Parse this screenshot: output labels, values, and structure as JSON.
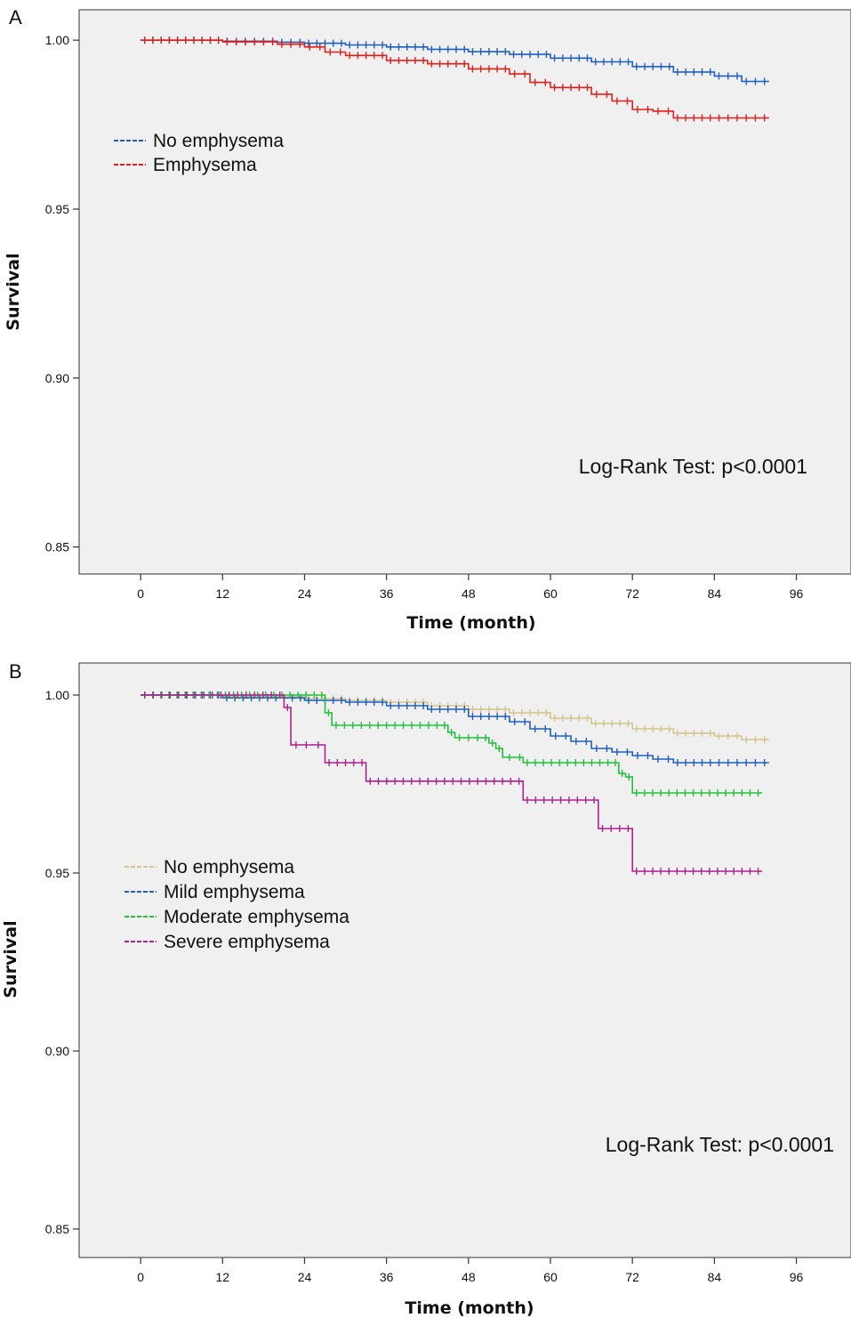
{
  "chart_data": [
    {
      "panel_label": "A",
      "type": "line",
      "step": true,
      "xlabel": "Time (month)",
      "ylabel": "Survival",
      "xlim": [
        -9,
        104
      ],
      "ylim": [
        0.842,
        1.009
      ],
      "xticks": [
        0,
        12,
        24,
        36,
        48,
        60,
        72,
        84,
        96
      ],
      "yticks": [
        0.85,
        0.9,
        0.95,
        1.0
      ],
      "ytick_labels": [
        "0.85",
        "0.90",
        "0.95",
        "1.00"
      ],
      "grid": false,
      "legend_position": "top-left",
      "annotation": "Log-Rank Test: p<0.0001",
      "series": [
        {
          "name": "No emphysema",
          "color": "#1f5fbf",
          "x": [
            0,
            12,
            20,
            24,
            30,
            36,
            42,
            48,
            54,
            60,
            66,
            72,
            78,
            84,
            88,
            92
          ],
          "y": [
            1.0,
            0.9997,
            0.9994,
            0.9991,
            0.9986,
            0.998,
            0.9973,
            0.9966,
            0.9958,
            0.9947,
            0.9936,
            0.9922,
            0.9906,
            0.9894,
            0.9878,
            0.9878
          ]
        },
        {
          "name": "Emphysema",
          "color": "#e0201c",
          "x": [
            0,
            12,
            20,
            24,
            27,
            30,
            36,
            42,
            48,
            54,
            57,
            60,
            66,
            69,
            72,
            75,
            78,
            84,
            92
          ],
          "y": [
            1.0,
            0.9995,
            0.9988,
            0.998,
            0.9965,
            0.9955,
            0.994,
            0.993,
            0.9915,
            0.99,
            0.9875,
            0.986,
            0.984,
            0.982,
            0.9795,
            0.979,
            0.977,
            0.977,
            0.977
          ]
        }
      ]
    },
    {
      "panel_label": "B",
      "type": "line",
      "step": true,
      "xlabel": "Time (month)",
      "ylabel": "Survival",
      "xlim": [
        -9,
        104
      ],
      "ylim": [
        0.842,
        1.009
      ],
      "xticks": [
        0,
        12,
        24,
        36,
        48,
        60,
        72,
        84,
        96
      ],
      "yticks": [
        0.85,
        0.9,
        0.95,
        1.0
      ],
      "ytick_labels": [
        "0.85",
        "0.90",
        "0.95",
        "1.00"
      ],
      "grid": false,
      "legend_position": "middle-left",
      "annotation": "Log-Rank Test: p<0.0001",
      "series": [
        {
          "name": "No emphysema",
          "color": "#d4c48f",
          "x": [
            0,
            12,
            24,
            30,
            36,
            42,
            48,
            54,
            60,
            66,
            72,
            78,
            84,
            88,
            92
          ],
          "y": [
            1.0,
            0.9995,
            0.999,
            0.9985,
            0.998,
            0.997,
            0.996,
            0.995,
            0.9935,
            0.992,
            0.9905,
            0.9893,
            0.9885,
            0.9875,
            0.9875
          ]
        },
        {
          "name": "Mild emphysema",
          "color": "#1f5fbf",
          "x": [
            0,
            12,
            24,
            30,
            36,
            42,
            48,
            54,
            57,
            60,
            63,
            66,
            69,
            72,
            75,
            78,
            84,
            92
          ],
          "y": [
            1.0,
            0.9992,
            0.9985,
            0.998,
            0.997,
            0.996,
            0.994,
            0.9925,
            0.9905,
            0.9885,
            0.987,
            0.985,
            0.984,
            0.983,
            0.982,
            0.981,
            0.981,
            0.981
          ]
        },
        {
          "name": "Moderate emphysema",
          "color": "#22c03a",
          "x": [
            0,
            26,
            27,
            28,
            44,
            45,
            46,
            50,
            51,
            52,
            53,
            55,
            56,
            69,
            70,
            71,
            72,
            91
          ],
          "y": [
            1.0,
            1.0,
            0.995,
            0.9915,
            0.9915,
            0.9895,
            0.988,
            0.988,
            0.9865,
            0.985,
            0.9825,
            0.9825,
            0.981,
            0.981,
            0.978,
            0.977,
            0.9725,
            0.9725
          ]
        },
        {
          "name": "Severe emphysema",
          "color": "#b0208f",
          "x": [
            0,
            21,
            22,
            25,
            27,
            33,
            56,
            67,
            72,
            91
          ],
          "y": [
            1.0,
            0.9965,
            0.986,
            0.986,
            0.981,
            0.9758,
            0.9705,
            0.9625,
            0.9505,
            0.9505
          ]
        }
      ]
    }
  ]
}
